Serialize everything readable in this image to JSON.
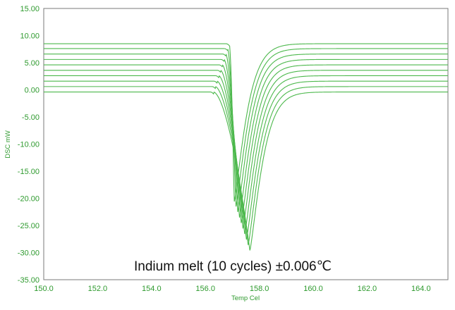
{
  "chart_data": {
    "type": "line",
    "title": "",
    "xlabel": "Temp Cel",
    "ylabel": "DSC mW",
    "xlim": [
      150.0,
      165.0
    ],
    "ylim": [
      -35.0,
      15.0
    ],
    "x_ticks": [
      "150.0",
      "152.0",
      "154.0",
      "156.0",
      "158.0",
      "160.0",
      "162.0",
      "164.0"
    ],
    "y_ticks": [
      "15.00",
      "10.00",
      "5.00",
      "0.00",
      "-5.00",
      "-10.00",
      "-15.00",
      "-20.00",
      "-25.00",
      "-30.00",
      "-35.00"
    ],
    "grid": false,
    "legend": "none",
    "annotation": "Indium melt (10 cycles) ±0.006℃",
    "line_color": "#4cb84c",
    "text_color": "#2e9a2e",
    "peak_shape": {
      "onset_x": 156.3,
      "peak_x": 157.65,
      "recovery_tail": 1.0
    },
    "series": [
      {
        "baseline": -0.4,
        "peak_min": -29.6
      },
      {
        "baseline": 0.6,
        "peak_min": -28.6
      },
      {
        "baseline": 1.6,
        "peak_min": -27.6
      },
      {
        "baseline": 2.6,
        "peak_min": -26.6
      },
      {
        "baseline": 3.6,
        "peak_min": -25.6
      },
      {
        "baseline": 4.6,
        "peak_min": -24.6
      },
      {
        "baseline": 5.6,
        "peak_min": -23.6
      },
      {
        "baseline": 6.6,
        "peak_min": -22.6
      },
      {
        "baseline": 7.6,
        "peak_min": -21.6
      },
      {
        "baseline": 8.5,
        "peak_min": -20.7
      }
    ]
  }
}
